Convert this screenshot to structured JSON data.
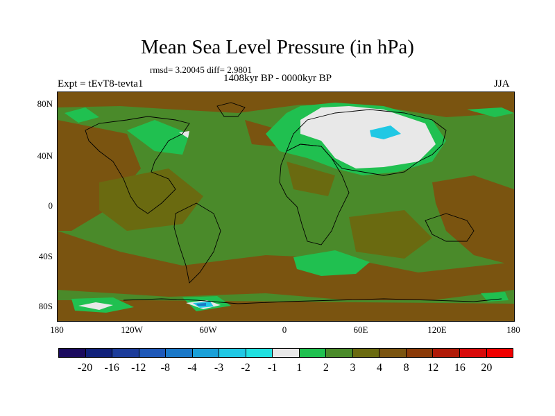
{
  "title": "Mean Sea Level Pressure (in hPa)",
  "stats": "rmsd= 3.20045 diff= 2.9801",
  "period": "1408kyr BP - 0000kyr BP",
  "experiment": "Expt = tEvT8-tevta1",
  "season": "JJA",
  "lat_labels": [
    "80N",
    "40N",
    "0",
    "40S",
    "80S"
  ],
  "lon_labels": [
    "180",
    "120W",
    "60W",
    "0",
    "60E",
    "120E",
    "180"
  ],
  "colorbar": {
    "labels": [
      "-20",
      "-16",
      "-12",
      "-8",
      "-4",
      "-3",
      "-2",
      "-1",
      "1",
      "2",
      "3",
      "4",
      "8",
      "12",
      "16",
      "20"
    ],
    "colors": [
      "#1a0a5e",
      "#10207a",
      "#1c3c9a",
      "#1e58b8",
      "#1a78c8",
      "#1aa0d8",
      "#20c8e4",
      "#20e0e0",
      "#e8e8e8",
      "#20c050",
      "#4a8a2a",
      "#6a6a10",
      "#7a5410",
      "#8a3a08",
      "#b01a08",
      "#d80a0a",
      "#f00000"
    ]
  },
  "field_colors": {
    "ocean_brown": "#7a5410",
    "olive": "#6a6a10",
    "green_dark": "#4a8a2a",
    "green_bright": "#20c050",
    "white": "#e8e8e8",
    "cyan": "#20c8e4",
    "blue": "#1a78c8"
  }
}
